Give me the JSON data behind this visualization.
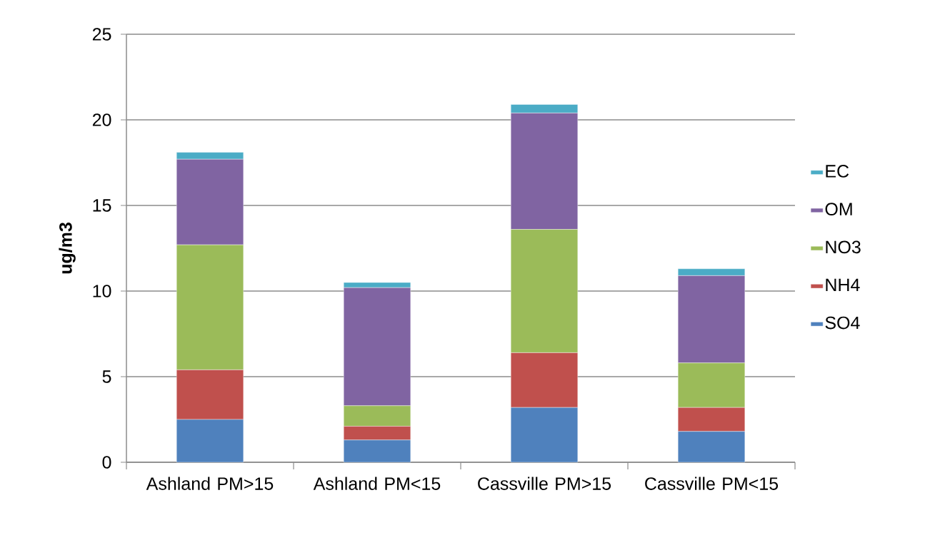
{
  "chart_data": {
    "type": "bar",
    "stacked": true,
    "ylabel": "ug/m3",
    "categories": [
      "Ashland PM>15",
      "Ashland PM<15",
      "Cassville PM>15",
      "Cassville PM<15"
    ],
    "series": [
      {
        "name": "SO4",
        "color": "#4f81bd",
        "values": [
          2.5,
          1.3,
          3.2,
          1.8
        ]
      },
      {
        "name": "NH4",
        "color": "#c0504d",
        "values": [
          2.9,
          0.8,
          3.2,
          1.4
        ]
      },
      {
        "name": "NO3",
        "color": "#9bbb59",
        "values": [
          7.3,
          1.2,
          7.2,
          2.6
        ]
      },
      {
        "name": "OM",
        "color": "#8064a2",
        "values": [
          5.0,
          6.9,
          6.8,
          5.1
        ]
      },
      {
        "name": "EC",
        "color": "#4bacc6",
        "values": [
          0.4,
          0.3,
          0.5,
          0.4
        ]
      }
    ],
    "ylim": [
      0,
      25
    ],
    "yticks": [
      0,
      5,
      10,
      15,
      20,
      25
    ],
    "grid": "y",
    "legend": "right"
  }
}
